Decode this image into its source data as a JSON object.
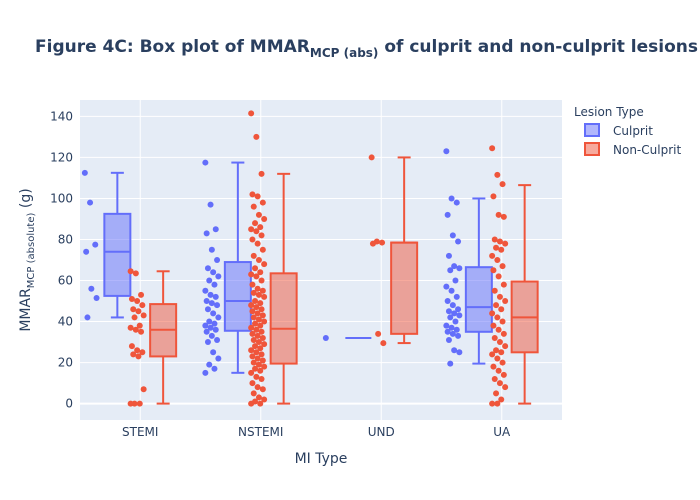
{
  "chart_data": {
    "type": "box",
    "title_main": "Figure 4C: Box plot of MMAR",
    "title_sub": "MCP (abs)",
    "title_tail": " of culprit and non-culprit lesions",
    "xlabel": "MI Type",
    "ylabel_main": "MMAR",
    "ylabel_sub": "MCP (absolute)",
    "ylabel_tail": " (g)",
    "ylim": [
      -8,
      148
    ],
    "yticks": [
      0,
      20,
      40,
      60,
      80,
      100,
      120,
      140
    ],
    "categories": [
      "STEMI",
      "NSTEMI",
      "UND",
      "UA"
    ],
    "grid": true,
    "legend_title": "Lesion Type",
    "legend_position": "right",
    "series": [
      {
        "name": "Culprit",
        "color": "#636efa",
        "boxes": [
          {
            "category": "STEMI",
            "min": 42,
            "q1": 52.5,
            "median": 74,
            "q3": 92.5,
            "max": 112.5,
            "points": [
              112.5,
              98,
              77.5,
              74,
              56,
              51.5,
              42
            ]
          },
          {
            "category": "NSTEMI",
            "min": 15,
            "q1": 35.5,
            "median": 50,
            "q3": 69,
            "max": 117.5,
            "points": [
              117.5,
              97,
              85,
              83,
              75,
              70,
              66,
              64,
              62,
              60,
              58,
              55,
              53,
              52,
              50,
              49,
              48,
              46,
              44,
              42,
              40,
              39,
              38,
              37,
              36,
              35,
              33,
              31,
              30,
              25,
              22,
              19,
              17,
              15
            ]
          },
          {
            "category": "UND",
            "min": 32,
            "q1": 32,
            "median": 32,
            "q3": 32,
            "max": 32,
            "points": [
              32
            ]
          },
          {
            "category": "UA",
            "min": 19.5,
            "q1": 35,
            "median": 47,
            "q3": 66.5,
            "max": 100,
            "points": [
              123,
              100,
              98,
              92,
              82,
              79,
              72,
              67,
              66,
              65,
              60,
              57,
              55,
              52,
              50,
              48,
              46,
              45,
              44,
              43,
              42,
              40,
              38,
              37,
              36,
              35,
              34,
              33,
              31,
              26,
              25,
              19.5
            ]
          }
        ]
      },
      {
        "name": "Non-Culprit",
        "color": "#ef553b",
        "boxes": [
          {
            "category": "STEMI",
            "min": 0,
            "q1": 23,
            "median": 36,
            "q3": 48.5,
            "max": 64.5,
            "points": [
              64.5,
              63.5,
              53,
              51,
              50,
              48,
              46,
              45,
              43,
              42,
              38,
              37,
              36,
              35,
              28,
              26,
              25,
              24,
              23,
              7,
              0,
              0,
              0
            ]
          },
          {
            "category": "NSTEMI",
            "min": 0,
            "q1": 19.5,
            "median": 36.5,
            "q3": 63.5,
            "max": 112,
            "points": [
              141.5,
              130,
              112,
              102,
              101,
              98,
              96,
              92,
              90,
              88,
              86,
              85,
              84,
              82,
              80,
              78,
              75,
              72,
              70,
              68,
              66,
              64,
              63,
              62,
              60,
              58,
              56,
              55,
              54,
              53,
              52,
              50,
              49,
              48,
              47,
              46,
              45,
              44,
              43,
              42,
              41,
              40,
              39,
              38,
              37,
              36,
              35,
              34,
              33,
              32,
              31,
              30,
              29,
              28,
              27,
              26,
              25,
              24,
              23,
              22,
              21,
              20,
              19,
              18,
              17,
              16,
              15,
              13,
              12,
              10,
              8,
              7,
              5,
              3,
              2,
              1,
              0,
              0
            ]
          },
          {
            "category": "UND",
            "min": 29.5,
            "q1": 34,
            "median": 78.5,
            "q3": 78.5,
            "max": 120,
            "points": [
              120,
              79,
              78.5,
              78,
              34,
              29.5
            ]
          },
          {
            "category": "UA",
            "min": 0,
            "q1": 25,
            "median": 42,
            "q3": 59.5,
            "max": 106.5,
            "points": [
              124.5,
              111.5,
              107,
              101,
              92,
              91,
              80,
              79,
              78,
              76,
              75,
              72,
              70,
              67,
              65,
              62,
              58,
              55,
              52,
              50,
              48,
              46,
              44,
              42,
              40,
              38,
              36,
              34,
              32,
              30,
              28,
              26,
              25,
              24,
              22,
              20,
              18,
              16,
              14,
              12,
              10,
              8,
              5,
              2,
              0,
              0
            ]
          }
        ]
      }
    ]
  }
}
